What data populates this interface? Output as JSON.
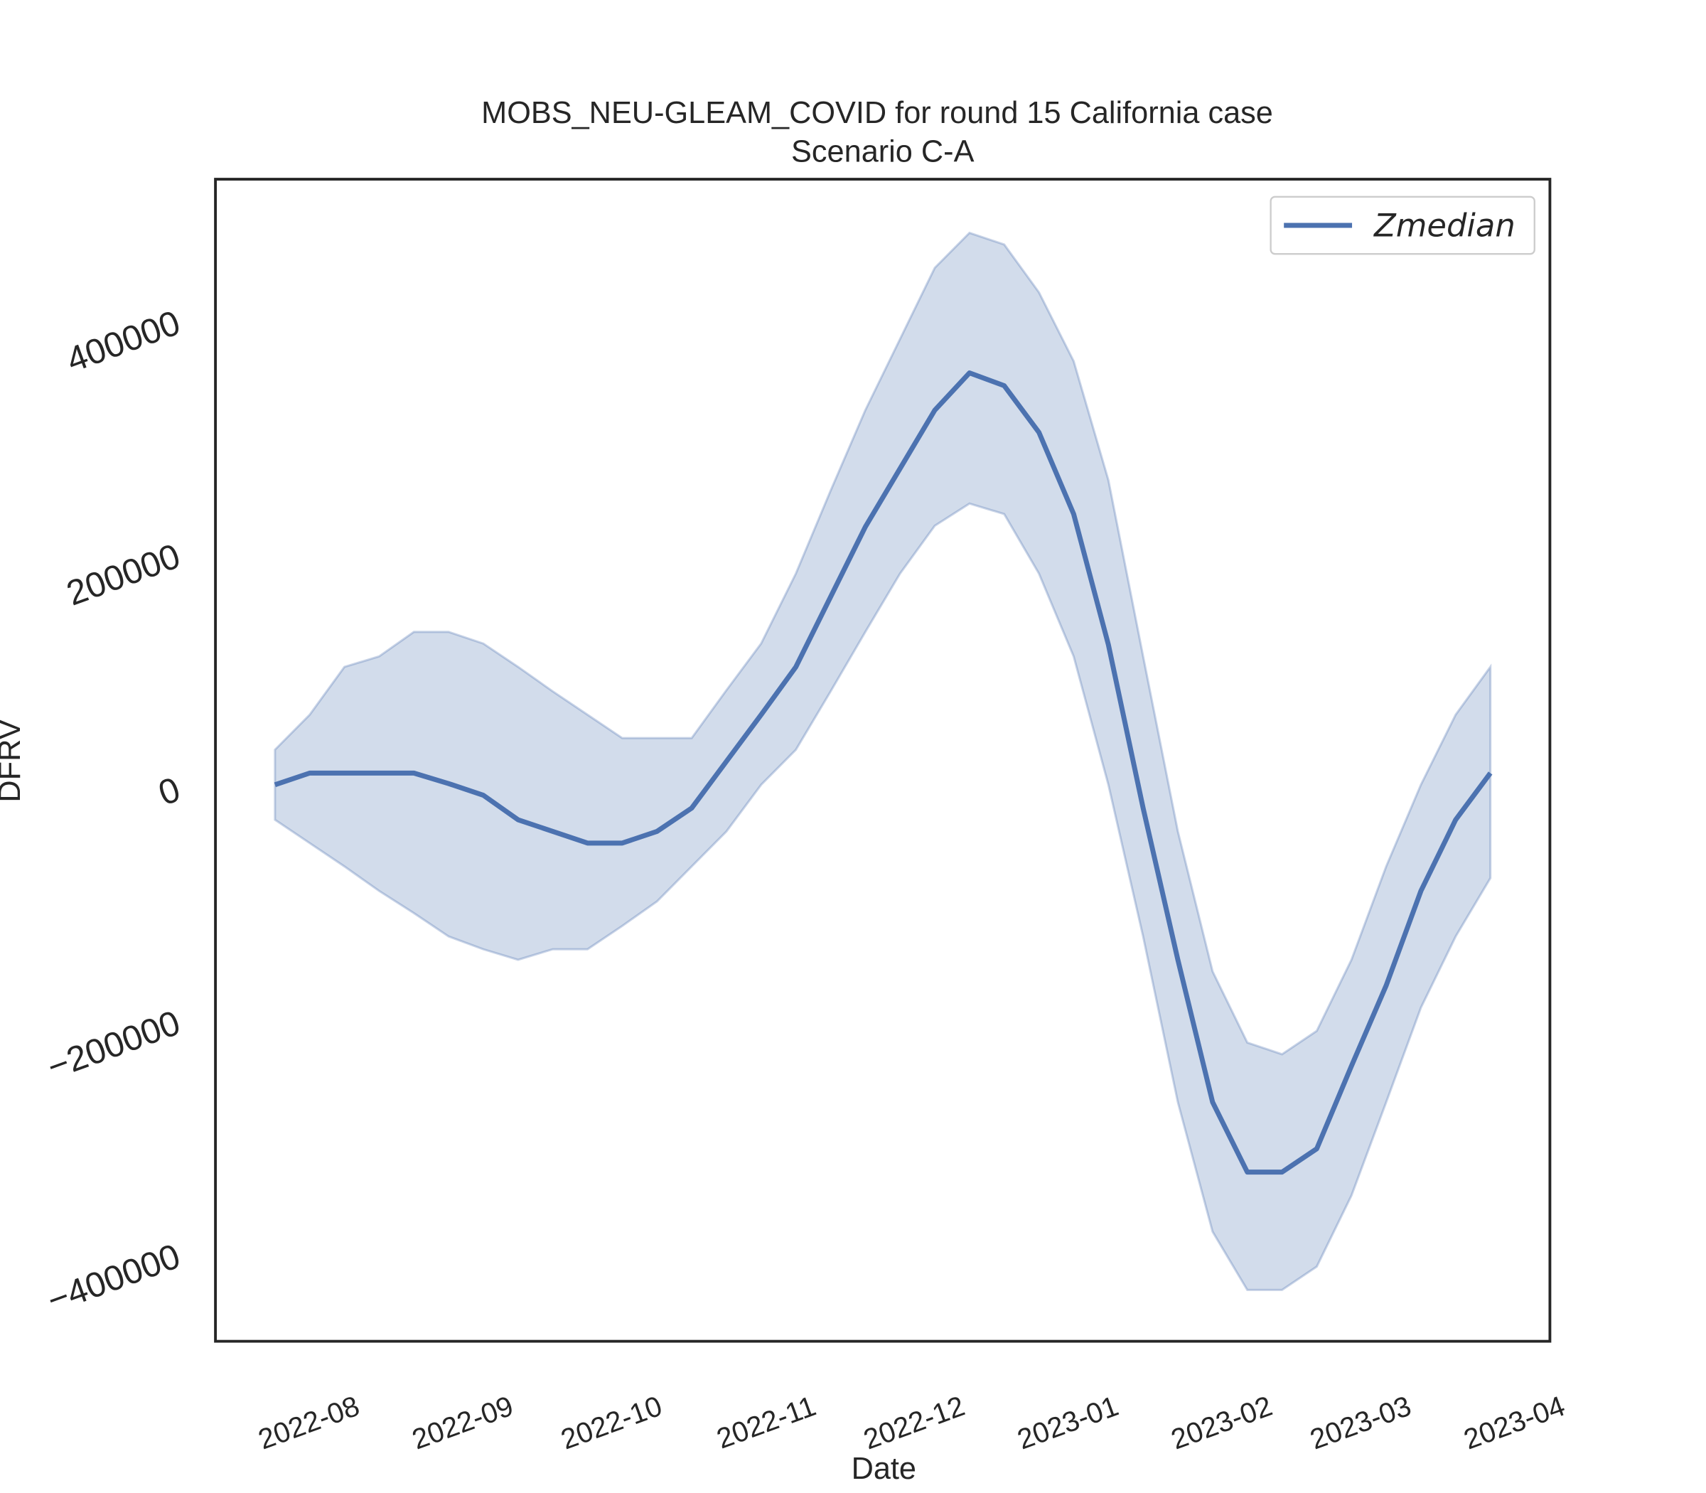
{
  "chart_data": {
    "type": "line",
    "title": "MOBS_NEU-GLEAM_COVID for round 15 California case",
    "subtitle": "Scenario C-A",
    "xlabel": "Date",
    "ylabel": "DFRV",
    "x": [
      "2022-07-23",
      "2022-07-30",
      "2022-08-06",
      "2022-08-13",
      "2022-08-20",
      "2022-08-27",
      "2022-09-03",
      "2022-09-10",
      "2022-09-17",
      "2022-09-24",
      "2022-10-01",
      "2022-10-08",
      "2022-10-15",
      "2022-10-22",
      "2022-10-29",
      "2022-11-05",
      "2022-11-12",
      "2022-11-19",
      "2022-11-26",
      "2022-12-03",
      "2022-12-10",
      "2022-12-17",
      "2022-12-24",
      "2022-12-31",
      "2023-01-07",
      "2023-01-14",
      "2023-01-21",
      "2023-01-28",
      "2023-02-04",
      "2023-02-11",
      "2023-02-18",
      "2023-02-25",
      "2023-03-04",
      "2023-03-11",
      "2023-03-18",
      "2023-03-25"
    ],
    "series": [
      {
        "name": "Zmedian",
        "color": "#4c72b0",
        "values": [
          1000,
          11000,
          11000,
          11000,
          11000,
          2000,
          -8000,
          -29000,
          -39000,
          -49000,
          -49000,
          -39000,
          -19000,
          21000,
          61000,
          102000,
          162000,
          222000,
          272000,
          322000,
          354000,
          343000,
          303000,
          233000,
          121000,
          -19000,
          -149000,
          -271000,
          -331000,
          -331000,
          -311000,
          -240000,
          -171000,
          -90000,
          -29000,
          11000
        ],
        "upper": [
          31000,
          61000,
          102000,
          111000,
          132000,
          132000,
          122000,
          102000,
          81000,
          61000,
          41000,
          41000,
          41000,
          82000,
          122000,
          182000,
          253000,
          322000,
          383000,
          444000,
          474000,
          464000,
          423000,
          364000,
          262000,
          111000,
          -39000,
          -159000,
          -220000,
          -230000,
          -210000,
          -149000,
          -69000,
          1000,
          61000,
          102000
        ],
        "lower": [
          -29000,
          -49000,
          -69000,
          -90000,
          -109000,
          -129000,
          -140000,
          -149000,
          -140000,
          -140000,
          -120000,
          -99000,
          -69000,
          -39000,
          1000,
          31000,
          81000,
          132000,
          182000,
          223000,
          242000,
          233000,
          182000,
          111000,
          1000,
          -129000,
          -271000,
          -382000,
          -432000,
          -432000,
          -412000,
          -351000,
          -271000,
          -190000,
          -129000,
          -79000
        ]
      }
    ],
    "xlim": [
      "2022-07-11",
      "2023-04-06"
    ],
    "xticks": [
      {
        "value": "2022-08-01",
        "label": "2022-08"
      },
      {
        "value": "2022-09-01",
        "label": "2022-09"
      },
      {
        "value": "2022-10-01",
        "label": "2022-10"
      },
      {
        "value": "2022-11-01",
        "label": "2022-11"
      },
      {
        "value": "2022-12-01",
        "label": "2022-12"
      },
      {
        "value": "2023-01-01",
        "label": "2023-01"
      },
      {
        "value": "2023-02-01",
        "label": "2023-02"
      },
      {
        "value": "2023-03-01",
        "label": "2023-03"
      },
      {
        "value": "2023-04-01",
        "label": "2023-04"
      }
    ],
    "ylim": [
      -476000,
      520000
    ],
    "yticks": [
      {
        "value": -400000,
        "label": "−400000"
      },
      {
        "value": -200000,
        "label": "−200000"
      },
      0,
      200000,
      400000
    ],
    "legend": "upper right",
    "grid": false
  }
}
